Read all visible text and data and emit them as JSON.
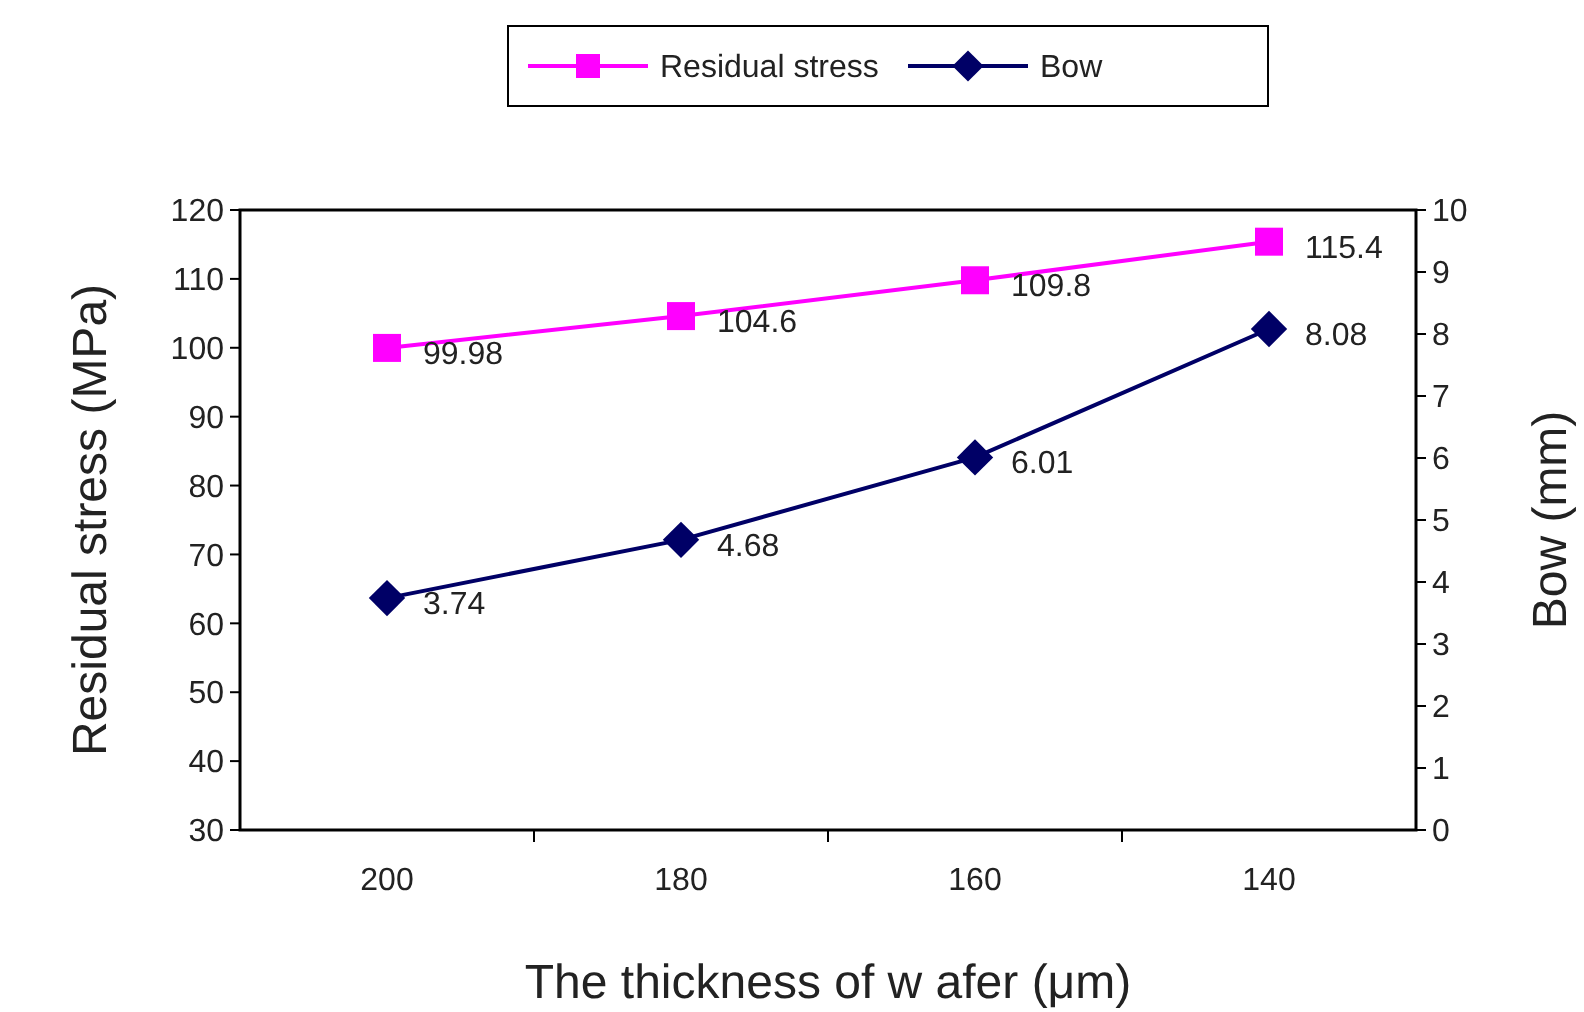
{
  "chart_data": {
    "type": "line",
    "xlabel": "The thickness of w afer (μm)",
    "ylabel": "Residual stress (MPa)",
    "y2label": "Bow (mm)",
    "categories": [
      "200",
      "180",
      "160",
      "140"
    ],
    "ylim": [
      30,
      120
    ],
    "yticks": [
      30,
      40,
      50,
      60,
      70,
      80,
      90,
      100,
      110,
      120
    ],
    "y2lim": [
      0,
      10
    ],
    "y2ticks": [
      0,
      1,
      2,
      3,
      4,
      5,
      6,
      7,
      8,
      9,
      10
    ],
    "series": [
      {
        "name": "Residual stress",
        "color": "#ff00ff",
        "marker": "square",
        "values": [
          99.98,
          104.6,
          109.8,
          115.4
        ]
      },
      {
        "name": "Bow",
        "color": "#000066",
        "marker": "diamond",
        "axis": "y2",
        "values": [
          3.74,
          4.68,
          6.01,
          8.08
        ]
      }
    ],
    "data_labels": true,
    "legend": "top",
    "grid": false
  }
}
